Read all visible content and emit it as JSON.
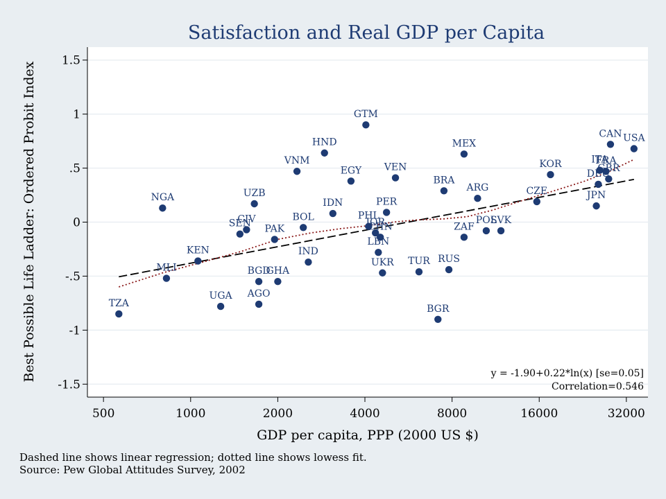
{
  "chart_data": {
    "type": "scatter",
    "title": "Satisfaction and Real GDP per Capita",
    "xlabel": "GDP per capita, PPP (2000 US $)",
    "ylabel": "Best Possible Life Ladder: Ordered Probit Index",
    "x_scale": "log",
    "xlim": [
      440,
      38000
    ],
    "ylim": [
      -1.62,
      1.62
    ],
    "x_ticks": [
      500,
      1000,
      2000,
      4000,
      8000,
      16000,
      32000
    ],
    "x_tick_labels": [
      "500",
      "1000",
      "2000",
      "4000",
      "8000",
      "16000",
      "32000"
    ],
    "y_ticks": [
      1.5,
      1,
      0.5,
      0,
      -0.5,
      -1,
      -1.5
    ],
    "y_tick_labels": [
      "1.5",
      "1",
      ".5",
      "0",
      "-.5",
      "-1",
      "-1.5"
    ],
    "grid": true,
    "points": [
      {
        "label": "TZA",
        "x": 565,
        "y": -0.85
      },
      {
        "label": "NGA",
        "x": 800,
        "y": 0.13
      },
      {
        "label": "MLI",
        "x": 825,
        "y": -0.52
      },
      {
        "label": "KEN",
        "x": 1060,
        "y": -0.36
      },
      {
        "label": "UGA",
        "x": 1270,
        "y": -0.78
      },
      {
        "label": "SEN",
        "x": 1480,
        "y": -0.11
      },
      {
        "label": "CIV",
        "x": 1560,
        "y": -0.07
      },
      {
        "label": "UZB",
        "x": 1660,
        "y": 0.17
      },
      {
        "label": "BGD",
        "x": 1720,
        "y": -0.55
      },
      {
        "label": "AGO",
        "x": 1720,
        "y": -0.76
      },
      {
        "label": "PAK",
        "x": 1950,
        "y": -0.16
      },
      {
        "label": "GHA",
        "x": 2000,
        "y": -0.55
      },
      {
        "label": "VNM",
        "x": 2330,
        "y": 0.47
      },
      {
        "label": "BOL",
        "x": 2450,
        "y": -0.05
      },
      {
        "label": "IND",
        "x": 2550,
        "y": -0.37
      },
      {
        "label": "HND",
        "x": 2900,
        "y": 0.64
      },
      {
        "label": "IDN",
        "x": 3100,
        "y": 0.08
      },
      {
        "label": "EGY",
        "x": 3580,
        "y": 0.38
      },
      {
        "label": "GTM",
        "x": 4030,
        "y": 0.9
      },
      {
        "label": "PHL",
        "x": 4120,
        "y": -0.04
      },
      {
        "label": "JOR",
        "x": 4350,
        "y": -0.1
      },
      {
        "label": "CHN",
        "x": 4520,
        "y": -0.14
      },
      {
        "label": "LBN",
        "x": 4450,
        "y": -0.28
      },
      {
        "label": "UKR",
        "x": 4600,
        "y": -0.47
      },
      {
        "label": "PER",
        "x": 4750,
        "y": 0.09
      },
      {
        "label": "VEN",
        "x": 5100,
        "y": 0.41
      },
      {
        "label": "TUR",
        "x": 6150,
        "y": -0.46
      },
      {
        "label": "BGR",
        "x": 7150,
        "y": -0.9
      },
      {
        "label": "BRA",
        "x": 7500,
        "y": 0.29
      },
      {
        "label": "RUS",
        "x": 7800,
        "y": -0.44
      },
      {
        "label": "MEX",
        "x": 8800,
        "y": 0.63
      },
      {
        "label": "ZAF",
        "x": 8800,
        "y": -0.14
      },
      {
        "label": "ARG",
        "x": 9800,
        "y": 0.22
      },
      {
        "label": "POL",
        "x": 10500,
        "y": -0.08
      },
      {
        "label": "SVK",
        "x": 11800,
        "y": -0.08
      },
      {
        "label": "CZE",
        "x": 15700,
        "y": 0.19
      },
      {
        "label": "KOR",
        "x": 17500,
        "y": 0.44
      },
      {
        "label": "JPN",
        "x": 25200,
        "y": 0.15
      },
      {
        "label": "DEU",
        "x": 25600,
        "y": 0.35
      },
      {
        "label": "ITA",
        "x": 25900,
        "y": 0.48
      },
      {
        "label": "FRA",
        "x": 27200,
        "y": 0.47
      },
      {
        "label": "GBR",
        "x": 27800,
        "y": 0.4
      },
      {
        "label": "CAN",
        "x": 28200,
        "y": 0.72
      },
      {
        "label": "USA",
        "x": 34000,
        "y": 0.68
      }
    ],
    "regression": {
      "intercept": -1.9,
      "slope": 0.22
    },
    "lowess": [
      {
        "x": 565,
        "y": -0.6
      },
      {
        "x": 800,
        "y": -0.47
      },
      {
        "x": 1100,
        "y": -0.37
      },
      {
        "x": 1500,
        "y": -0.27
      },
      {
        "x": 2000,
        "y": -0.16
      },
      {
        "x": 2600,
        "y": -0.1
      },
      {
        "x": 3300,
        "y": -0.06
      },
      {
        "x": 4200,
        "y": -0.03
      },
      {
        "x": 5000,
        "y": 0.0
      },
      {
        "x": 6000,
        "y": 0.02
      },
      {
        "x": 7500,
        "y": 0.03
      },
      {
        "x": 9000,
        "y": 0.05
      },
      {
        "x": 11000,
        "y": 0.11
      },
      {
        "x": 14000,
        "y": 0.2
      },
      {
        "x": 18000,
        "y": 0.29
      },
      {
        "x": 23000,
        "y": 0.38
      },
      {
        "x": 28000,
        "y": 0.47
      },
      {
        "x": 34000,
        "y": 0.58
      }
    ],
    "annotations": [
      "y = -1.90+0.22*ln(x) [se=0.05]",
      "Correlation=0.546"
    ],
    "colors": {
      "point": "#1e3b73",
      "title": "#1e3b73",
      "regression": "#000000",
      "lowess": "#8b1a1a",
      "plot_background": "#ffffff",
      "page_background": "#e9eef2",
      "grid": "#e9eef2"
    }
  },
  "notes": {
    "line1": "Dashed line shows linear regression; dotted line shows lowess fit.",
    "line2": "Source: Pew Global Attitudes Survey, 2002"
  }
}
